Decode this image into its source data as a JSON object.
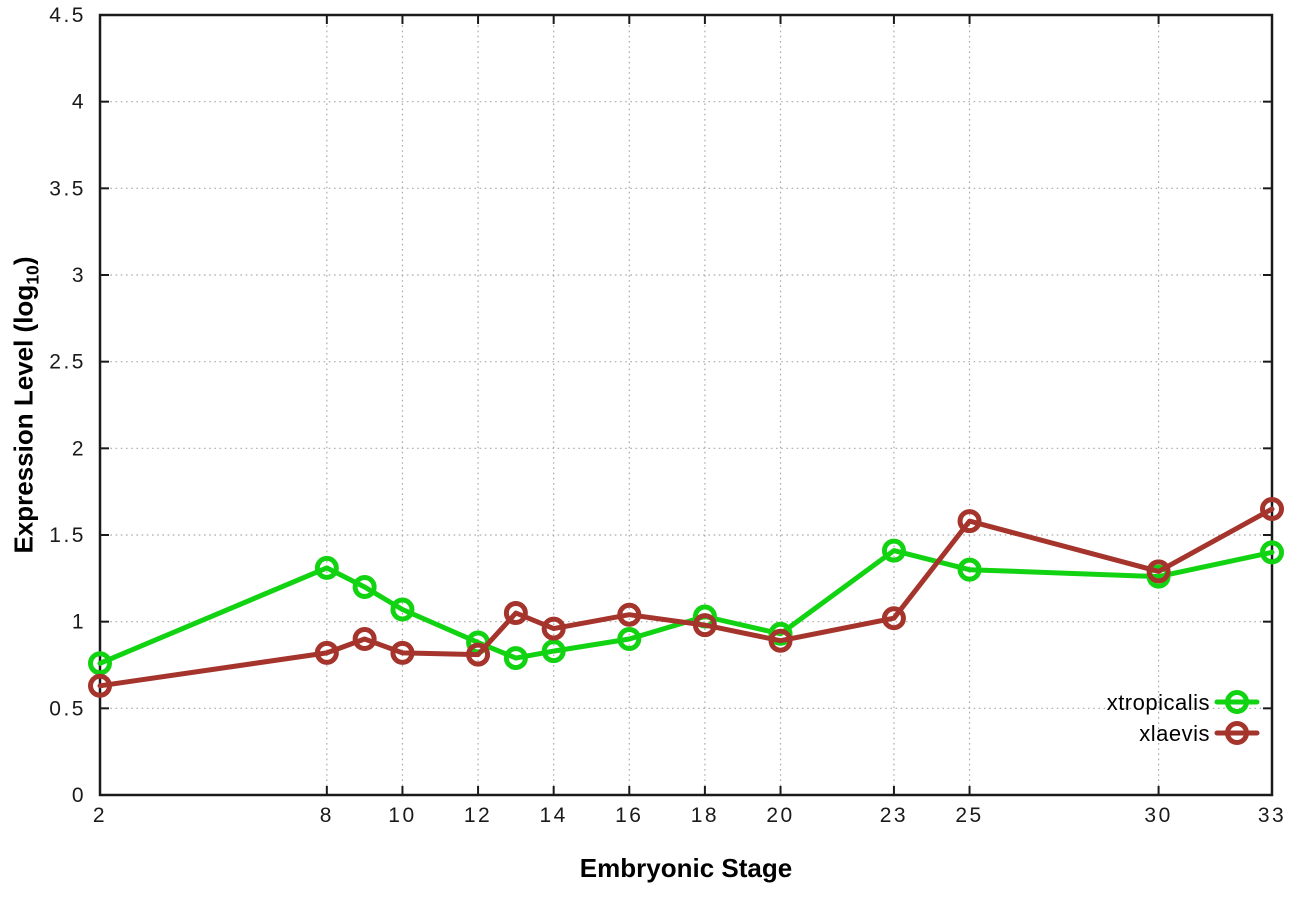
{
  "chart_data": {
    "type": "line",
    "title": "",
    "xlabel": "Embryonic Stage",
    "ylabel": "Expression Level (log10)",
    "ylabel_parts": {
      "prefix": "Expression Level (log",
      "sub": "10",
      "suffix": ")"
    },
    "x": [
      2,
      8,
      9,
      10,
      12,
      13,
      14,
      16,
      18,
      20,
      23,
      25,
      30,
      33
    ],
    "series": [
      {
        "name": "xtropicalis",
        "color": "#12d312",
        "marker": "open-circle",
        "values": [
          0.76,
          1.31,
          1.2,
          1.07,
          0.88,
          0.79,
          0.83,
          0.9,
          1.03,
          0.93,
          1.41,
          1.3,
          1.26,
          1.4
        ]
      },
      {
        "name": "xlaevis",
        "color": "#a5342c",
        "marker": "open-circle",
        "values": [
          0.63,
          0.82,
          0.9,
          0.82,
          0.81,
          1.05,
          0.96,
          1.04,
          0.98,
          0.89,
          1.02,
          1.58,
          1.29,
          1.65
        ]
      }
    ],
    "xlim": [
      2,
      33
    ],
    "ylim": [
      0,
      4.5
    ],
    "xtick_values": [
      2,
      8,
      10,
      12,
      14,
      16,
      18,
      20,
      23,
      25,
      30,
      33
    ],
    "xtick_labels": [
      "2",
      "8",
      "10",
      "12",
      "14",
      "16",
      "18",
      "20",
      "23",
      "25",
      "30",
      "33"
    ],
    "ytick_values": [
      0,
      0.5,
      1,
      1.5,
      2,
      2.5,
      3,
      3.5,
      4,
      4.5
    ],
    "ytick_labels": [
      "0",
      "0.5",
      "1",
      "1.5",
      "2",
      "2.5",
      "3",
      "3.5",
      "4",
      "4.5"
    ],
    "grid": true,
    "legend_position": "bottom-right",
    "axis_color": "#1a1a1a",
    "grid_color": "#aaaaaa",
    "background_color": "#ffffff"
  }
}
